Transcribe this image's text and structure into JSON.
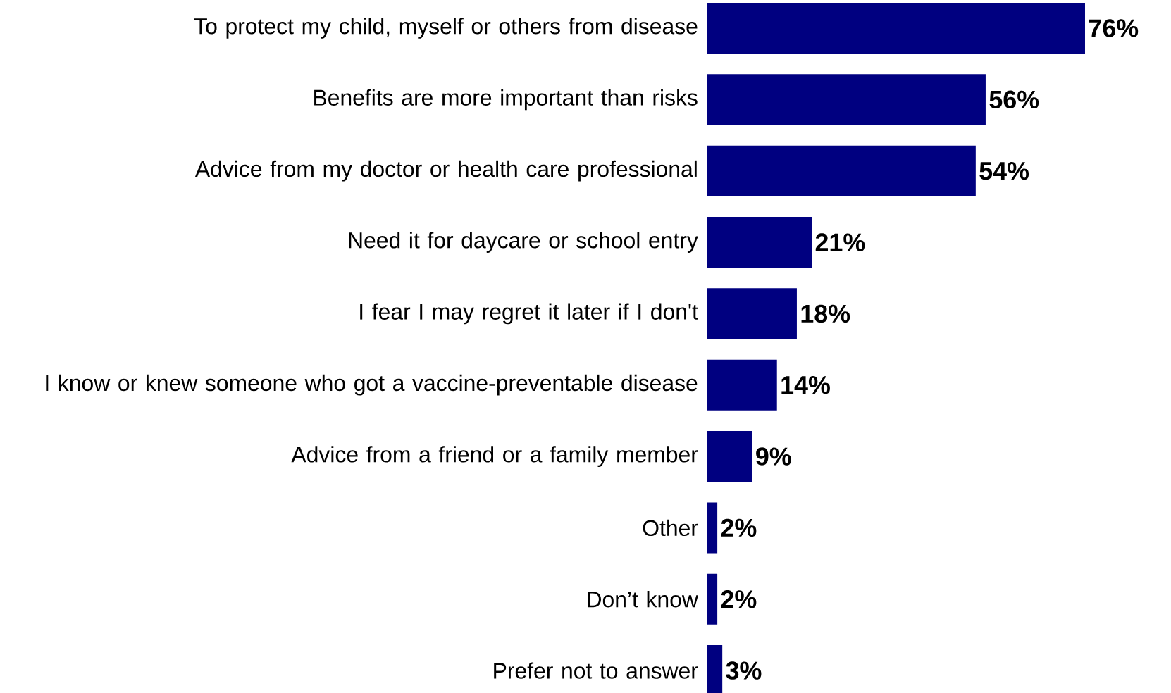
{
  "chart_data": {
    "type": "bar",
    "orientation": "horizontal",
    "categories": [
      "To protect my child, myself or others from disease",
      "Benefits are more important than risks",
      "Advice from my doctor or health care professional",
      "Need it for daycare or school entry",
      "I fear I may regret it later if I don't",
      "I know or knew someone who got a vaccine-preventable disease",
      "Advice from a friend or a family member",
      "Other",
      "Don’t know",
      "Prefer not to answer"
    ],
    "values": [
      76,
      56,
      54,
      21,
      18,
      14,
      9,
      2,
      2,
      3
    ],
    "value_labels": [
      "76%",
      "56%",
      "54%",
      "21%",
      "18%",
      "14%",
      "9%",
      "2%",
      "2%",
      "3%"
    ],
    "color": "#000080"
  }
}
